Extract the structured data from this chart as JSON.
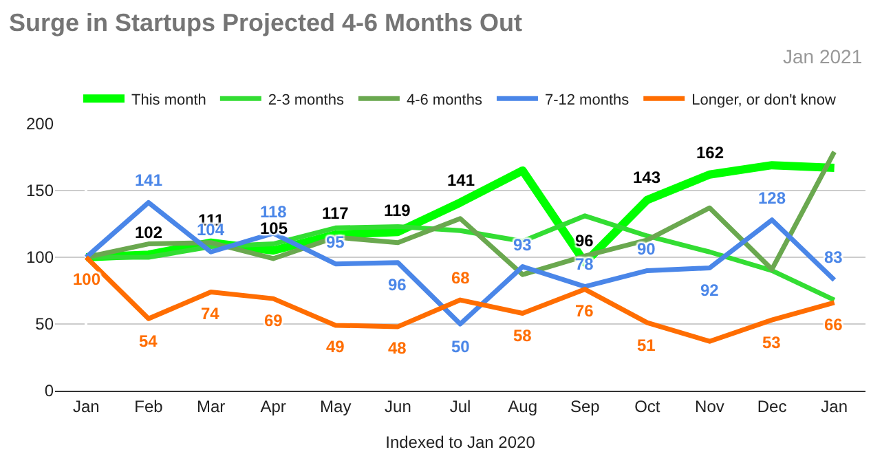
{
  "chart_data": {
    "type": "line",
    "title": "Surge in Startups Projected 4-6 Months Out",
    "subtitle": "Jan 2021",
    "xlabel": "Indexed to Jan 2020",
    "categories": [
      "Jan",
      "Feb",
      "Mar",
      "Apr",
      "May",
      "Jun",
      "Jul",
      "Aug",
      "Sep",
      "Oct",
      "Nov",
      "Dec",
      "Jan"
    ],
    "series": [
      {
        "name": "This month",
        "color": "#00ff00",
        "values": [
          100,
          102,
          111,
          105,
          117,
          119,
          141,
          165,
          96,
          143,
          162,
          169,
          167
        ],
        "value_labels": [
          null,
          "102",
          "111",
          "105",
          "117",
          "119",
          "141",
          null,
          "96",
          "143",
          "162",
          null,
          null
        ]
      },
      {
        "name": "2-3 months",
        "color": "#33dd33",
        "values": [
          100,
          100,
          108,
          110,
          122,
          123,
          120,
          112,
          131,
          116,
          104,
          90,
          68
        ]
      },
      {
        "name": "4-6 months",
        "color": "#6aa84f",
        "values": [
          100,
          110,
          111,
          99,
          115,
          111,
          129,
          87,
          101,
          113,
          137,
          91,
          179
        ]
      },
      {
        "name": "7-12 months",
        "color": "#4a86e8",
        "values": [
          100,
          141,
          104,
          118,
          95,
          96,
          50,
          93,
          78,
          90,
          92,
          128,
          83
        ],
        "value_labels": [
          "100",
          "141",
          "104",
          "118",
          "95",
          "96",
          "50",
          "93",
          "78",
          "90",
          "92",
          "128",
          "83"
        ]
      },
      {
        "name": "Longer, or don't know",
        "color": "#ff6d01",
        "values": [
          100,
          54,
          74,
          69,
          49,
          48,
          68,
          58,
          76,
          51,
          37,
          53,
          66
        ],
        "value_labels": [
          "100",
          "54",
          "74",
          "69",
          "49",
          "48",
          "68",
          "58",
          "76",
          "51",
          null,
          "53",
          "66"
        ]
      }
    ],
    "ylim": [
      0,
      200
    ],
    "yticks": [
      0,
      50,
      100,
      150,
      200
    ],
    "grid": "y",
    "legend": "top",
    "marker": "none",
    "line_style": "solid"
  }
}
